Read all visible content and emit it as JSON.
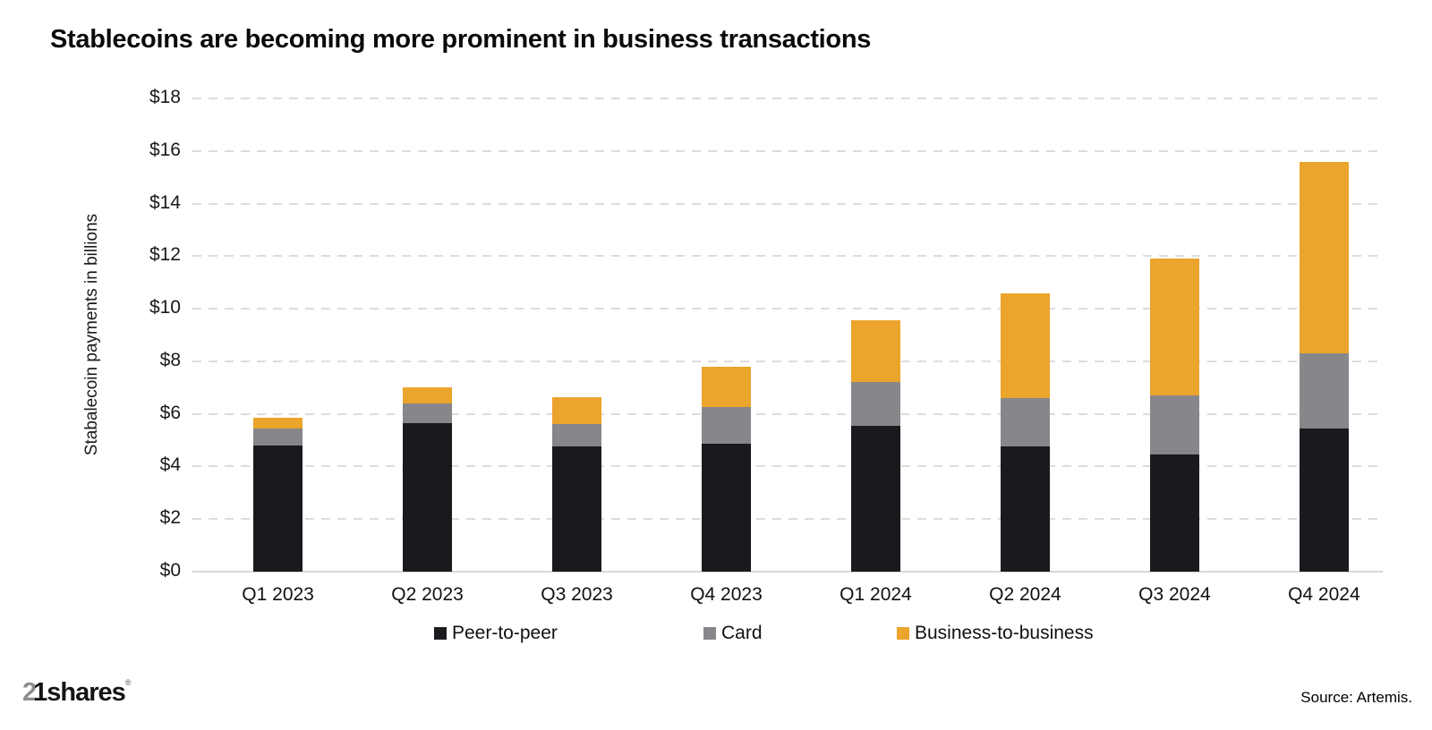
{
  "title": "Stablecoins are becoming more prominent in business transactions",
  "chart_data": {
    "type": "bar",
    "stacked": true,
    "title": "Stablecoins are becoming more prominent in business transactions",
    "xlabel": "",
    "ylabel": "Stabalecoin payments in billions",
    "ylim": [
      0,
      18
    ],
    "ytick_step": 2,
    "yticks": [
      "$0",
      "$2",
      "$4",
      "$6",
      "$8",
      "$10",
      "$12",
      "$14",
      "$16",
      "$18"
    ],
    "grid": "horizontal-dashed",
    "legend_position": "bottom",
    "categories": [
      "Q1 2023",
      "Q2 2023",
      "Q3 2023",
      "Q4 2023",
      "Q1 2024",
      "Q2 2024",
      "Q3 2024",
      "Q4 2024"
    ],
    "series": [
      {
        "name": "Peer-to-peer",
        "color": "#1a1a1e",
        "values": [
          4.8,
          5.65,
          4.75,
          4.85,
          5.55,
          4.75,
          4.45,
          5.45
        ]
      },
      {
        "name": "Card",
        "color": "#87878b",
        "values": [
          0.65,
          0.75,
          0.85,
          1.4,
          1.65,
          1.85,
          2.25,
          2.85
        ]
      },
      {
        "name": "Business-to-business",
        "color": "#eba42c",
        "values": [
          0.4,
          0.6,
          1.05,
          1.55,
          2.35,
          4.0,
          5.2,
          7.3
        ]
      }
    ],
    "totals": [
      5.85,
      7.0,
      6.65,
      7.8,
      9.55,
      10.6,
      11.9,
      15.6
    ]
  },
  "colors": {
    "peer_to_peer": "#1a1a1e",
    "card": "#87878b",
    "business_to_business": "#eba42c",
    "gridline": "#dcdcdc"
  },
  "footer": {
    "logo_prefix": "2",
    "logo_suffix": "1shares",
    "logo_reg": "®",
    "source": "Source: Artemis."
  }
}
